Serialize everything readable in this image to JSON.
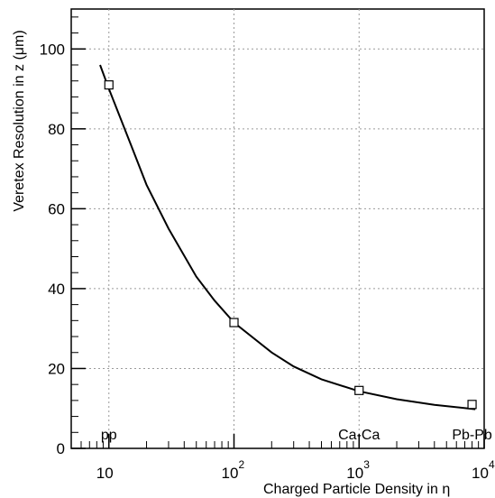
{
  "chart_data": {
    "type": "scatter",
    "title": "",
    "xlabel": "Charged Particle Density in η",
    "ylabel": "Veretex Resolution in z (μm)",
    "xscale": "log",
    "xlim": [
      5,
      10000
    ],
    "ylim": [
      0,
      110
    ],
    "grid": true,
    "x_ticks": [
      {
        "base": "10",
        "exp": ""
      },
      {
        "base": "10",
        "exp": "2"
      },
      {
        "base": "10",
        "exp": "3"
      },
      {
        "base": "10",
        "exp": "4"
      }
    ],
    "y_ticks": [
      "0",
      "20",
      "40",
      "60",
      "80",
      "100"
    ],
    "points": [
      {
        "x": 10,
        "y": 91
      },
      {
        "x": 100,
        "y": 31.5
      },
      {
        "x": 1000,
        "y": 14.5
      },
      {
        "x": 8000,
        "y": 11
      }
    ],
    "fit_curve": [
      {
        "x": 8.5,
        "y": 96
      },
      {
        "x": 10,
        "y": 90
      },
      {
        "x": 15,
        "y": 76
      },
      {
        "x": 20,
        "y": 66
      },
      {
        "x": 30,
        "y": 55
      },
      {
        "x": 50,
        "y": 43
      },
      {
        "x": 70,
        "y": 37
      },
      {
        "x": 100,
        "y": 31.5
      },
      {
        "x": 200,
        "y": 24
      },
      {
        "x": 300,
        "y": 20.5
      },
      {
        "x": 500,
        "y": 17.3
      },
      {
        "x": 1000,
        "y": 14.3
      },
      {
        "x": 2000,
        "y": 12.3
      },
      {
        "x": 4000,
        "y": 10.9
      },
      {
        "x": 8500,
        "y": 9.8
      }
    ],
    "annotations": [
      {
        "text": "pp",
        "x": 10
      },
      {
        "text": "Ca-Ca",
        "x": 1000
      },
      {
        "text": "Pb-Pb",
        "x": 8000
      }
    ]
  }
}
